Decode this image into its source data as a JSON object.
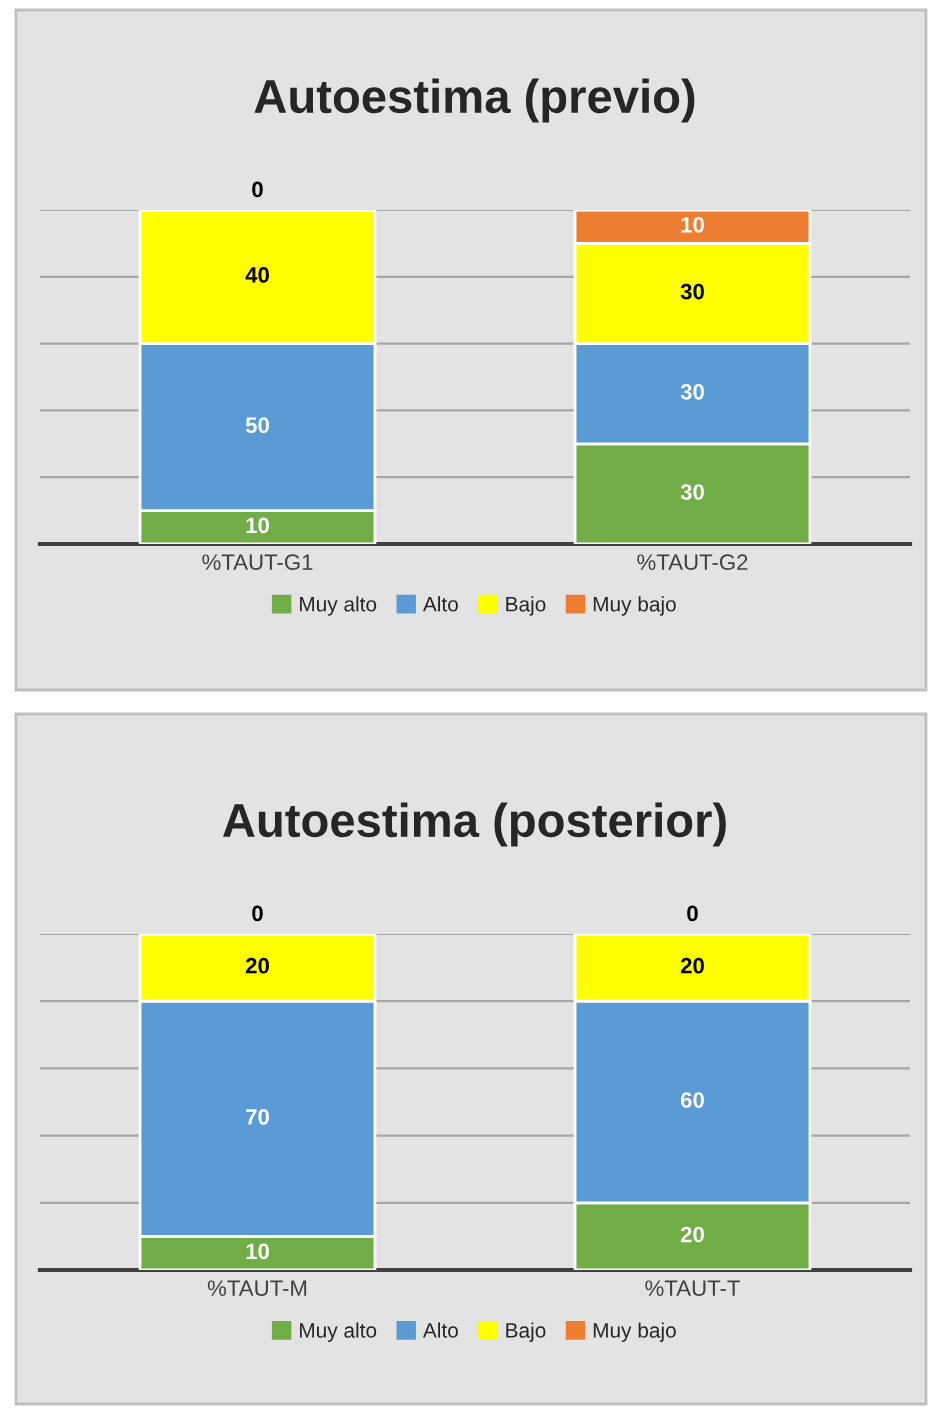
{
  "chart_data": [
    {
      "type": "bar",
      "title": "Autoestima (previo)",
      "categories": [
        "%TAUT-G1",
        "%TAUT-G2"
      ],
      "stacked": true,
      "data_labels": true,
      "series": [
        {
          "name": "Muy alto",
          "color": "#70ad47",
          "values": [
            10,
            30
          ]
        },
        {
          "name": "Alto",
          "color": "#5b9bd5",
          "values": [
            50,
            30
          ]
        },
        {
          "name": "Bajo",
          "color": "#ffff00",
          "values": [
            40,
            30
          ]
        },
        {
          "name": "Muy bajo",
          "color": "#ed7d31",
          "values": [
            0,
            10
          ]
        }
      ],
      "ylim": [
        0,
        100
      ],
      "yticks": [
        {
          "value": 0,
          "label": null
        },
        {
          "value": 20,
          "label": null
        },
        {
          "value": 40,
          "label": null
        },
        {
          "value": 60,
          "label": null
        },
        {
          "value": 80,
          "label": null
        },
        {
          "value": 100,
          "label": null
        }
      ],
      "tick_labels": "x",
      "grid": "y",
      "legend": "bottom"
    },
    {
      "type": "bar",
      "title": "Autoestima (posterior)",
      "categories": [
        "%TAUT-M",
        "%TAUT-T"
      ],
      "stacked": true,
      "data_labels": true,
      "series": [
        {
          "name": "Muy alto",
          "color": "#70ad47",
          "values": [
            10,
            20
          ]
        },
        {
          "name": "Alto",
          "color": "#5b9bd5",
          "values": [
            70,
            60
          ]
        },
        {
          "name": "Bajo",
          "color": "#ffff00",
          "values": [
            20,
            20
          ]
        },
        {
          "name": "Muy bajo",
          "color": "#ed7d31",
          "values": [
            0,
            0
          ]
        }
      ],
      "ylim": [
        0,
        100
      ],
      "yticks": [
        {
          "value": 0,
          "label": null
        },
        {
          "value": 20,
          "label": null
        },
        {
          "value": 40,
          "label": null
        },
        {
          "value": 60,
          "label": null
        },
        {
          "value": 80,
          "label": null
        },
        {
          "value": 100,
          "label": null
        }
      ],
      "tick_labels": "x",
      "grid": "y",
      "legend": "bottom"
    }
  ]
}
